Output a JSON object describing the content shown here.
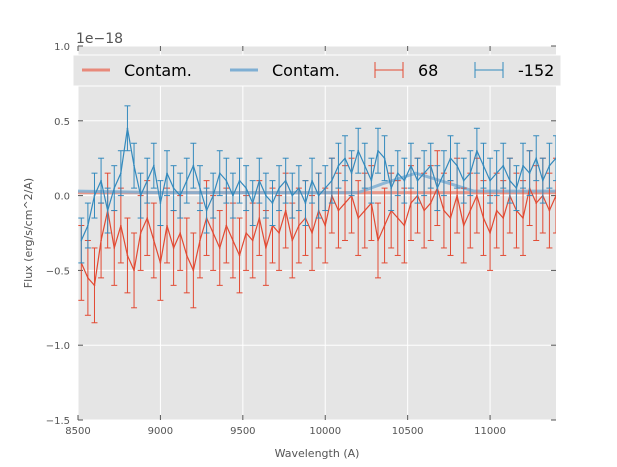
{
  "chart_data": {
    "type": "line",
    "title": "",
    "xlabel": "Wavelength (A)",
    "ylabel": "Flux (erg/s/cm^2/A)",
    "offset_label": "1e−18",
    "xlim": [
      8500,
      11400
    ],
    "ylim": [
      -1.5,
      1.0
    ],
    "xticks": [
      8500,
      9000,
      9500,
      10000,
      10500,
      11000
    ],
    "xtick_labels": [
      "8500",
      "9000",
      "9500",
      "10000",
      "10500",
      "11000"
    ],
    "yticks": [
      -1.5,
      -1.0,
      -0.5,
      0.0,
      0.5,
      1.0
    ],
    "ytick_labels": [
      "−1.5",
      "−1.0",
      "−0.5",
      "0.0",
      "0.5",
      "1.0"
    ],
    "grid": true,
    "legend_placement": "top",
    "legend": [
      "Contam.",
      "Contam.",
      "68",
      "-152"
    ],
    "contam": [
      {
        "name": "Contam.",
        "color": "#E8897A",
        "x": [
          8500,
          11400
        ],
        "y": [
          0.02,
          0.02
        ]
      },
      {
        "name": "Contam.",
        "color": "#7FAFD3",
        "x": [
          8500,
          9000,
          10200,
          10350,
          10550,
          10700,
          10900,
          11400
        ],
        "y": [
          0.03,
          0.02,
          0.02,
          0.08,
          0.15,
          0.1,
          0.03,
          0.03
        ]
      }
    ],
    "series": [
      {
        "name": "68",
        "color": "#E24A33",
        "x_start": 8520,
        "x_step": 40,
        "yerr": 0.25,
        "values": [
          -0.45,
          -0.55,
          -0.6,
          -0.3,
          -0.1,
          -0.35,
          -0.2,
          -0.4,
          -0.5,
          -0.25,
          -0.15,
          -0.3,
          -0.45,
          -0.2,
          -0.35,
          -0.25,
          -0.4,
          -0.5,
          -0.3,
          -0.15,
          -0.25,
          -0.35,
          -0.2,
          -0.3,
          -0.4,
          -0.25,
          -0.3,
          -0.15,
          -0.35,
          -0.2,
          -0.25,
          -0.1,
          -0.3,
          -0.2,
          -0.15,
          -0.25,
          -0.1,
          -0.2,
          0.0,
          -0.1,
          -0.05,
          0.0,
          -0.15,
          -0.1,
          -0.05,
          -0.3,
          -0.2,
          -0.1,
          -0.15,
          -0.2,
          -0.05,
          0.0,
          -0.1,
          -0.05,
          0.05,
          -0.1,
          -0.15,
          0.0,
          -0.2,
          -0.1,
          0.0,
          -0.15,
          -0.25,
          -0.1,
          -0.15,
          0.0,
          -0.1,
          -0.15,
          0.05,
          -0.05,
          0.0,
          -0.1,
          0.0
        ]
      },
      {
        "name": "-152",
        "color": "#348ABD",
        "x_start": 8520,
        "x_step": 40,
        "yerr": 0.15,
        "values": [
          -0.3,
          -0.2,
          0.0,
          0.1,
          -0.1,
          0.05,
          0.15,
          0.45,
          0.2,
          0.0,
          0.1,
          0.2,
          -0.05,
          0.15,
          0.05,
          0.0,
          0.1,
          0.2,
          0.05,
          -0.1,
          0.0,
          0.15,
          0.1,
          0.0,
          0.1,
          0.05,
          -0.05,
          0.1,
          0.0,
          -0.05,
          0.05,
          0.1,
          0.0,
          0.05,
          -0.05,
          0.1,
          0.0,
          0.05,
          0.1,
          0.2,
          0.25,
          0.15,
          0.3,
          0.2,
          0.1,
          0.3,
          0.25,
          0.05,
          0.15,
          0.1,
          0.2,
          0.1,
          0.15,
          0.2,
          0.05,
          0.15,
          0.25,
          0.2,
          0.1,
          0.15,
          0.3,
          0.2,
          0.1,
          0.15,
          0.2,
          0.1,
          0.05,
          0.2,
          0.15,
          0.25,
          0.1,
          0.2,
          0.25
        ]
      }
    ]
  }
}
